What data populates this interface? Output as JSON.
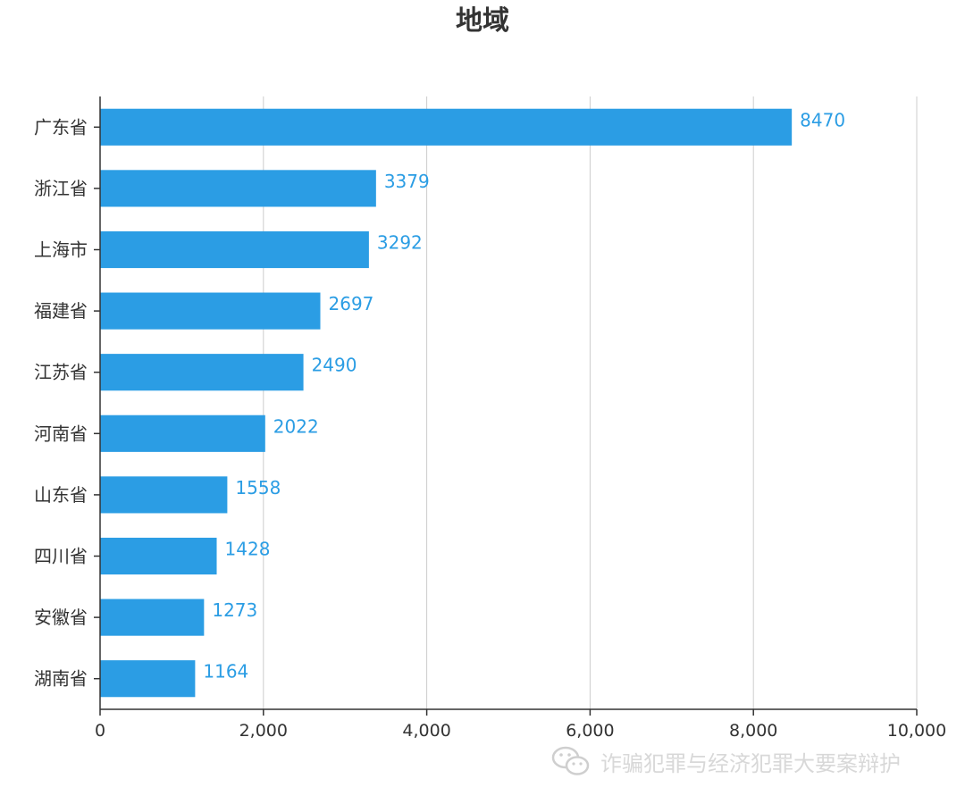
{
  "chart_data": {
    "type": "bar",
    "orientation": "horizontal",
    "title": "地域",
    "categories": [
      "广东省",
      "浙江省",
      "上海市",
      "福建省",
      "江苏省",
      "河南省",
      "山东省",
      "四川省",
      "安徽省",
      "湖南省"
    ],
    "values": [
      8470,
      3379,
      3292,
      2697,
      2490,
      2022,
      1558,
      1428,
      1273,
      1164
    ],
    "xlim": [
      0,
      10000
    ],
    "x_ticks": [
      0,
      2000,
      4000,
      6000,
      8000,
      10000
    ],
    "x_tick_labels": [
      "0",
      "2,000",
      "4,000",
      "6,000",
      "8,000",
      "10,000"
    ],
    "xlabel": "",
    "ylabel": "",
    "grid": "vertical",
    "data_labels": true,
    "bar_color": "#2b9de4",
    "label_color": "#2b9de4",
    "grid_color": "#cccccc"
  },
  "watermark": {
    "icon": "wechat-icon",
    "text": "诈骗犯罪与经济犯罪大要案辩护"
  }
}
